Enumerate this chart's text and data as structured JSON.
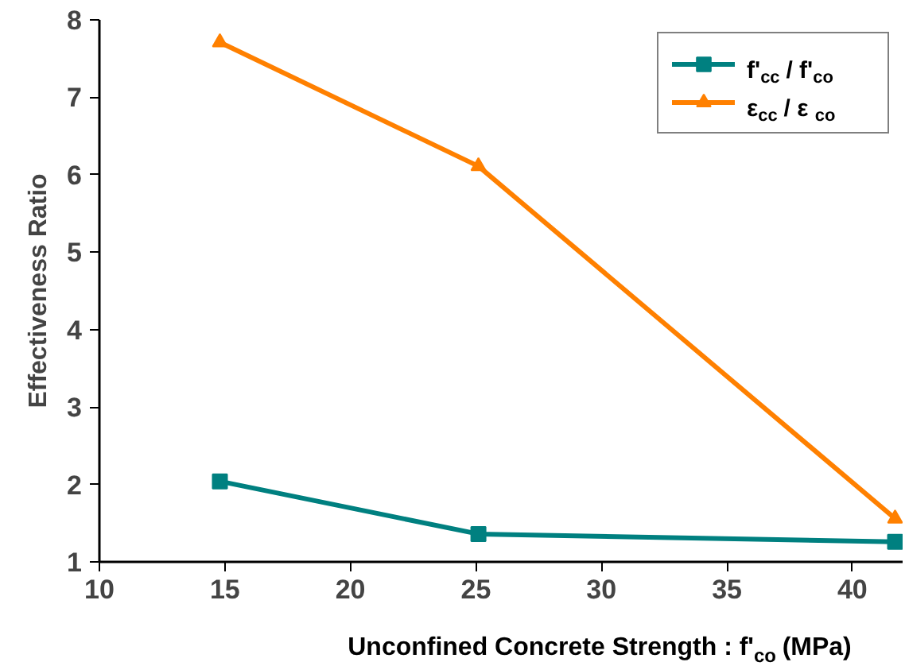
{
  "chart_data": {
    "type": "line",
    "xlabel": "Unconfined Concrete Strength : f'$_{co}$ (MPa)",
    "ylabel": "Effectiveness Ratio",
    "x": [
      14.8,
      25.1,
      41.7
    ],
    "series": [
      {
        "name": "f'$_{cc}$ / f'$_{co}$",
        "color": "#008080",
        "marker": "square",
        "values": [
          2.04,
          1.36,
          1.26
        ]
      },
      {
        "name": "ε$_{cc}$ /  ε$_{co}$",
        "color": "#ff8000",
        "marker": "triangle",
        "values": [
          7.71,
          6.11,
          1.56
        ]
      }
    ],
    "xlim": [
      10,
      42
    ],
    "ylim": [
      1,
      8
    ],
    "xticks": [
      10,
      15,
      20,
      25,
      30,
      35,
      40
    ],
    "yticks": [
      1,
      2,
      3,
      4,
      5,
      6,
      7,
      8
    ],
    "grid": false,
    "legend": "top right",
    "line_style": "solid"
  }
}
